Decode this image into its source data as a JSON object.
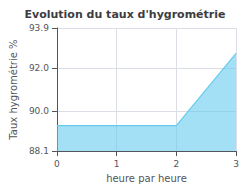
{
  "chart_data": {
    "type": "area",
    "title": "Evolution du taux d'hygrométrie",
    "xlabel": "heure par heure",
    "ylabel": "Taux hygrométrie %",
    "x": [
      0,
      2,
      3
    ],
    "values": [
      89.3,
      89.3,
      92.7
    ],
    "color": "#66ccee",
    "xlim": [
      0,
      3
    ],
    "ylim": [
      88.1,
      93.9
    ],
    "xticks": [
      0,
      1,
      2,
      3
    ],
    "yticks": [
      88.1,
      {
        "value": 90,
        "label": "90.0"
      },
      {
        "value": 92,
        "label": "92.0"
      },
      93.9
    ],
    "grid": true
  }
}
